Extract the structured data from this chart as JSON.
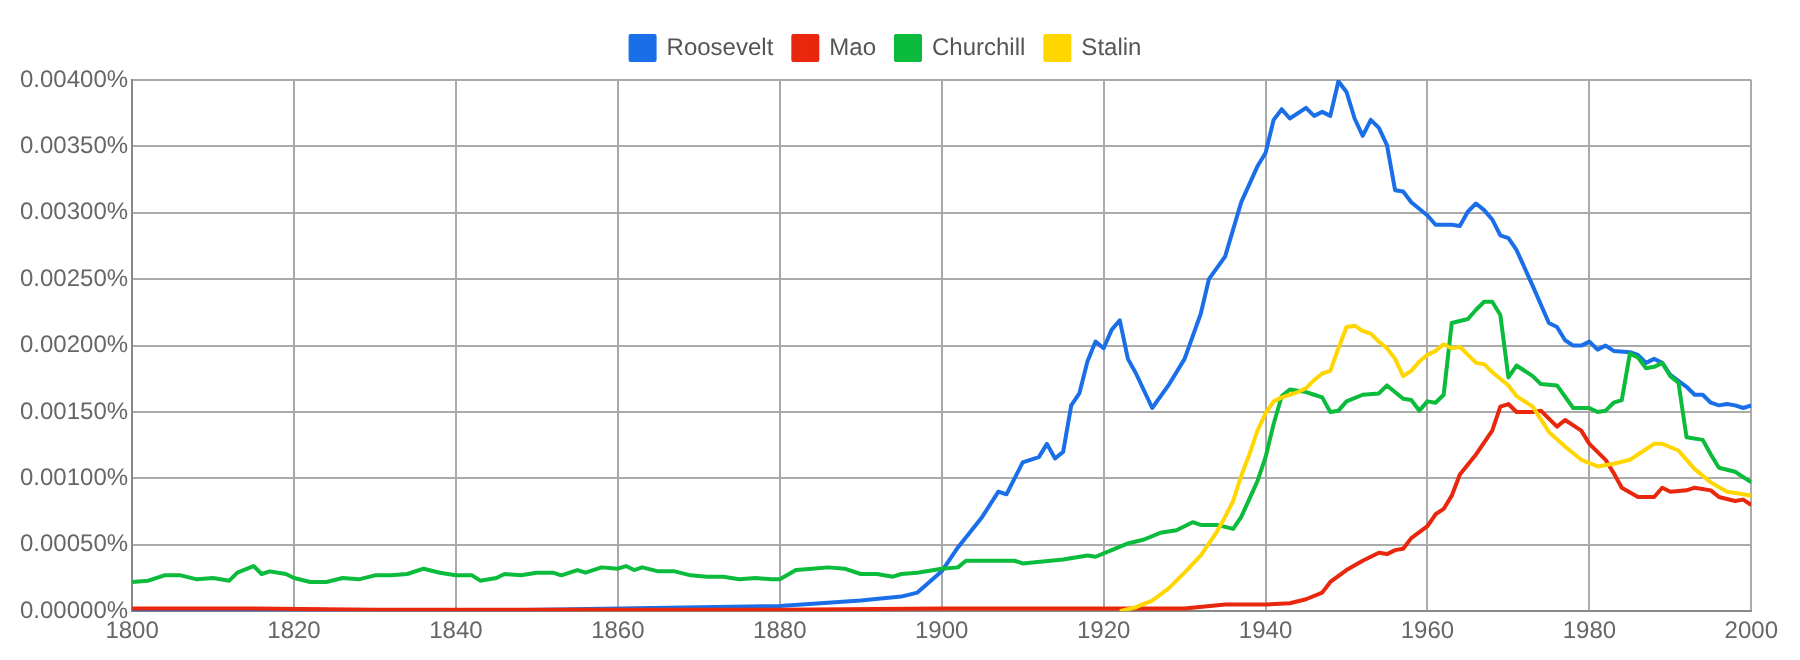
{
  "chart_data": {
    "type": "line",
    "xlim": [
      1800,
      2000
    ],
    "xticks": [
      1800,
      1820,
      1840,
      1860,
      1880,
      1900,
      1920,
      1940,
      1960,
      1980,
      2000
    ],
    "ylim": [
      0,
      0.004
    ],
    "yticks": [
      {
        "value": 0,
        "label": "0.00000%"
      },
      {
        "value": 0.0005,
        "label": "0.00050%"
      },
      {
        "value": 0.001,
        "label": "0.00100%"
      },
      {
        "value": 0.0015,
        "label": "0.00150%"
      },
      {
        "value": 0.002,
        "label": "0.00200%"
      },
      {
        "value": 0.0025,
        "label": "0.00250%"
      },
      {
        "value": 0.003,
        "label": "0.00300%"
      },
      {
        "value": 0.0035,
        "label": "0.00350%"
      },
      {
        "value": 0.004,
        "label": "0.00400%"
      }
    ],
    "grid": true,
    "legend": "top",
    "series": [
      {
        "name": "Roosevelt",
        "color": "#1a6fe8",
        "x": [
          1800,
          1840,
          1880,
          1890,
          1895,
          1897,
          1900,
          1902,
          1905,
          1907,
          1908,
          1910,
          1912,
          1913,
          1914,
          1915,
          1916,
          1917,
          1918,
          1919,
          1920,
          1921,
          1922,
          1923,
          1924,
          1926,
          1928,
          1930,
          1932,
          1933,
          1935,
          1937,
          1939,
          1940,
          1941,
          1942,
          1943,
          1945,
          1946,
          1947,
          1948,
          1949,
          1950,
          1951,
          1952,
          1953,
          1954,
          1955,
          1956,
          1957,
          1958,
          1960,
          1961,
          1963,
          1964,
          1965,
          1966,
          1967,
          1968,
          1969,
          1970,
          1971,
          1973,
          1975,
          1976,
          1977,
          1978,
          1979,
          1980,
          1981,
          1982,
          1983,
          1985,
          1986,
          1987,
          1988,
          1989,
          1990,
          1992,
          1993,
          1994,
          1995,
          1996,
          1997,
          1998,
          1999,
          2000
        ],
        "values": [
          0,
          0,
          4e-05,
          8e-05,
          0.00011,
          0.00014,
          0.0003,
          0.00048,
          0.00071,
          0.0009,
          0.00088,
          0.00112,
          0.00116,
          0.00126,
          0.00115,
          0.0012,
          0.00155,
          0.00164,
          0.00188,
          0.00203,
          0.00198,
          0.00212,
          0.00219,
          0.0019,
          0.00179,
          0.00153,
          0.0017,
          0.0019,
          0.00224,
          0.0025,
          0.00267,
          0.00308,
          0.00335,
          0.00345,
          0.0037,
          0.00378,
          0.00371,
          0.00379,
          0.00373,
          0.00376,
          0.00373,
          0.00399,
          0.00391,
          0.00371,
          0.00358,
          0.0037,
          0.00364,
          0.00351,
          0.00317,
          0.00316,
          0.00308,
          0.00298,
          0.00291,
          0.00291,
          0.0029,
          0.00301,
          0.00307,
          0.00302,
          0.00295,
          0.00283,
          0.00281,
          0.00272,
          0.00245,
          0.00217,
          0.00214,
          0.00204,
          0.002,
          0.002,
          0.00203,
          0.00197,
          0.002,
          0.00196,
          0.00195,
          0.00193,
          0.00187,
          0.0019,
          0.00187,
          0.00178,
          0.00169,
          0.00163,
          0.00163,
          0.00157,
          0.00155,
          0.00156,
          0.00155,
          0.00153,
          0.00155
        ]
      },
      {
        "name": "Mao",
        "color": "#e8270d",
        "x": [
          1800,
          1815,
          1830,
          1880,
          1900,
          1920,
          1930,
          1935,
          1940,
          1943,
          1945,
          1947,
          1948,
          1950,
          1952,
          1954,
          1955,
          1956,
          1957,
          1958,
          1960,
          1961,
          1962,
          1963,
          1964,
          1966,
          1968,
          1969,
          1970,
          1971,
          1973,
          1974,
          1976,
          1977,
          1979,
          1980,
          1982,
          1983,
          1984,
          1986,
          1988,
          1989,
          1990,
          1992,
          1993,
          1995,
          1996,
          1998,
          1999,
          2000
        ],
        "values": [
          2e-05,
          2e-05,
          1e-05,
          1e-05,
          2e-05,
          2e-05,
          2e-05,
          5e-05,
          5e-05,
          6e-05,
          9e-05,
          0.00014,
          0.00022,
          0.00031,
          0.00038,
          0.00044,
          0.00043,
          0.00046,
          0.00047,
          0.00055,
          0.00064,
          0.00073,
          0.00077,
          0.00087,
          0.00103,
          0.00118,
          0.00136,
          0.00154,
          0.00156,
          0.0015,
          0.0015,
          0.00151,
          0.00139,
          0.00144,
          0.00136,
          0.00126,
          0.00114,
          0.00104,
          0.00093,
          0.00086,
          0.00086,
          0.00093,
          0.0009,
          0.00091,
          0.00093,
          0.00091,
          0.00086,
          0.00083,
          0.00084,
          0.0008
        ]
      },
      {
        "name": "Churchill",
        "color": "#0bbb3b",
        "x": [
          1800,
          1802,
          1804,
          1806,
          1808,
          1810,
          1812,
          1813,
          1815,
          1816,
          1817,
          1819,
          1820,
          1822,
          1824,
          1826,
          1828,
          1830,
          1832,
          1834,
          1836,
          1838,
          1840,
          1842,
          1843,
          1845,
          1846,
          1848,
          1850,
          1852,
          1853,
          1855,
          1856,
          1858,
          1860,
          1861,
          1862,
          1863,
          1865,
          1867,
          1869,
          1871,
          1873,
          1875,
          1877,
          1879,
          1880,
          1882,
          1884,
          1886,
          1888,
          1890,
          1892,
          1894,
          1895,
          1897,
          1900,
          1902,
          1903,
          1906,
          1909,
          1910,
          1915,
          1918,
          1919,
          1921,
          1923,
          1925,
          1927,
          1929,
          1931,
          1932,
          1934,
          1936,
          1937,
          1939,
          1940,
          1941,
          1942,
          1943,
          1945,
          1946,
          1947,
          1948,
          1949,
          1950,
          1952,
          1954,
          1955,
          1957,
          1958,
          1959,
          1960,
          1961,
          1962,
          1963,
          1965,
          1966,
          1967,
          1968,
          1969,
          1970,
          1971,
          1973,
          1974,
          1976,
          1978,
          1980,
          1981,
          1982,
          1983,
          1984,
          1985,
          1986,
          1987,
          1988,
          1989,
          1990,
          1991,
          1992,
          1994,
          1995,
          1996,
          1998,
          2000
        ],
        "values": [
          0.00022,
          0.00023,
          0.00027,
          0.00027,
          0.00024,
          0.00025,
          0.00023,
          0.00029,
          0.00034,
          0.00028,
          0.0003,
          0.00028,
          0.00025,
          0.00022,
          0.00022,
          0.00025,
          0.00024,
          0.00027,
          0.00027,
          0.00028,
          0.00032,
          0.00029,
          0.00027,
          0.00027,
          0.00023,
          0.00025,
          0.00028,
          0.00027,
          0.00029,
          0.00029,
          0.00027,
          0.00031,
          0.00029,
          0.00033,
          0.00032,
          0.00034,
          0.00031,
          0.00033,
          0.0003,
          0.0003,
          0.00027,
          0.00026,
          0.00026,
          0.00024,
          0.00025,
          0.00024,
          0.00024,
          0.00031,
          0.00032,
          0.00033,
          0.00032,
          0.00028,
          0.00028,
          0.00026,
          0.00028,
          0.00029,
          0.00032,
          0.00033,
          0.00038,
          0.00038,
          0.00038,
          0.00036,
          0.00039,
          0.00042,
          0.00041,
          0.00046,
          0.00051,
          0.00054,
          0.00059,
          0.00061,
          0.00067,
          0.00065,
          0.00065,
          0.00062,
          0.00071,
          0.00098,
          0.00116,
          0.00141,
          0.00162,
          0.00167,
          0.00165,
          0.00163,
          0.00161,
          0.0015,
          0.00151,
          0.00158,
          0.00163,
          0.00164,
          0.0017,
          0.0016,
          0.00159,
          0.00151,
          0.00158,
          0.00157,
          0.00163,
          0.00217,
          0.0022,
          0.00227,
          0.00233,
          0.00233,
          0.00223,
          0.00176,
          0.00185,
          0.00177,
          0.00171,
          0.0017,
          0.00153,
          0.00153,
          0.0015,
          0.00151,
          0.00157,
          0.00159,
          0.00194,
          0.00191,
          0.00183,
          0.00184,
          0.00187,
          0.00177,
          0.00172,
          0.00131,
          0.00129,
          0.00118,
          0.00108,
          0.00105,
          0.00097
        ]
      },
      {
        "name": "Stalin",
        "color": "#ffd600",
        "x": [
          1922,
          1924,
          1926,
          1928,
          1930,
          1932,
          1934,
          1935,
          1936,
          1937,
          1938,
          1939,
          1940,
          1941,
          1942,
          1943,
          1944,
          1945,
          1946,
          1947,
          1948,
          1949,
          1950,
          1951,
          1952,
          1953,
          1954,
          1955,
          1956,
          1957,
          1958,
          1959,
          1960,
          1961,
          1962,
          1963,
          1964,
          1965,
          1966,
          1967,
          1968,
          1970,
          1971,
          1973,
          1975,
          1977,
          1979,
          1981,
          1983,
          1985,
          1986,
          1988,
          1989,
          1991,
          1993,
          1995,
          1997,
          1999,
          2000
        ],
        "values": [
          0,
          3e-05,
          8e-05,
          0.00017,
          0.00029,
          0.00042,
          0.0006,
          0.00071,
          0.00083,
          0.00102,
          0.00118,
          0.00136,
          0.00149,
          0.00158,
          0.00161,
          0.00163,
          0.00165,
          0.00168,
          0.00174,
          0.00179,
          0.00181,
          0.00198,
          0.00214,
          0.00215,
          0.00211,
          0.00209,
          0.00203,
          0.00198,
          0.0019,
          0.00177,
          0.00181,
          0.00188,
          0.00193,
          0.00196,
          0.00201,
          0.00198,
          0.00199,
          0.00193,
          0.00187,
          0.00186,
          0.0018,
          0.0017,
          0.00162,
          0.00154,
          0.00135,
          0.00124,
          0.00114,
          0.00109,
          0.00111,
          0.00114,
          0.00118,
          0.00126,
          0.00126,
          0.00121,
          0.00107,
          0.00097,
          0.0009,
          0.00088,
          0.00087
        ]
      }
    ]
  }
}
